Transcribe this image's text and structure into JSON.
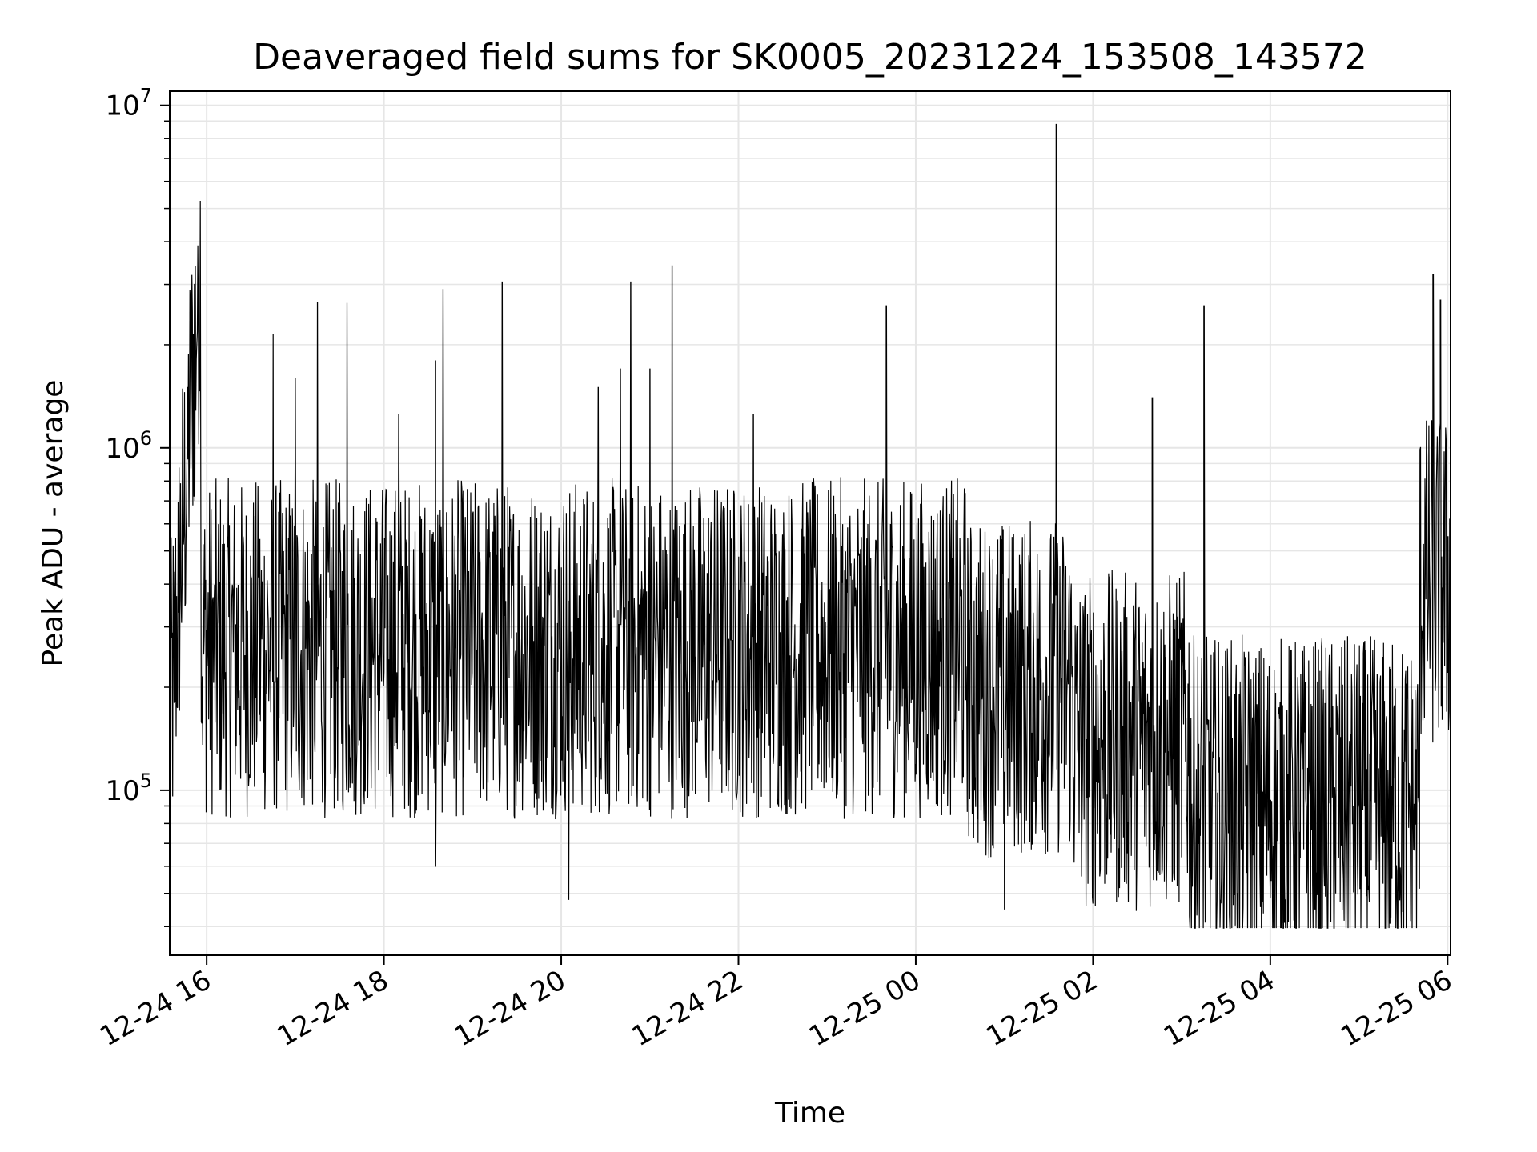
{
  "chart_data": {
    "type": "line",
    "title": "Deaveraged field sums for SK0005_20231224_153508_143572",
    "xlabel": "Time",
    "ylabel": "Peak ADU - average",
    "x_type": "datetime",
    "xlim": [
      "2023-12-24 15:35",
      "2023-12-25 06:02"
    ],
    "x_ticks": [
      {
        "time": "2023-12-24 16:00",
        "label": "12-24 16"
      },
      {
        "time": "2023-12-24 18:00",
        "label": "12-24 18"
      },
      {
        "time": "2023-12-24 20:00",
        "label": "12-24 20"
      },
      {
        "time": "2023-12-24 22:00",
        "label": "12-24 22"
      },
      {
        "time": "2023-12-25 00:00",
        "label": "12-25 00"
      },
      {
        "time": "2023-12-25 02:00",
        "label": "12-25 02"
      },
      {
        "time": "2023-12-25 04:00",
        "label": "12-25 04"
      },
      {
        "time": "2023-12-25 06:00",
        "label": "12-25 06"
      }
    ],
    "y_scale": "log",
    "ylim": [
      33000,
      11000000
    ],
    "y_ticks": [
      {
        "value": 100000,
        "base": "10",
        "exp": "5"
      },
      {
        "value": 1000000,
        "base": "10",
        "exp": "6"
      },
      {
        "value": 10000000,
        "base": "10",
        "exp": "7"
      }
    ],
    "grid": true,
    "line_color": "#000000",
    "grid_color": "#e6e6e6",
    "series": [
      {
        "values_description_points": [
          [
            "2023-12-24 15:35",
            100000
          ],
          [
            "2023-12-24 15:38",
            180000
          ],
          [
            "2023-12-24 15:41",
            330000
          ],
          [
            "2023-12-24 15:44",
            600000
          ],
          [
            "2023-12-24 15:47",
            1500000
          ],
          [
            "2023-12-24 15:50",
            3200000
          ],
          [
            "2023-12-24 15:52",
            700000
          ],
          [
            "2023-12-24 15:54",
            3900000
          ],
          [
            "2023-12-24 15:56",
            800000
          ],
          [
            "2023-12-24 15:58",
            250000
          ],
          [
            "2023-12-24 16:05",
            350000
          ],
          [
            "2023-12-24 16:35",
            420000
          ],
          [
            "2023-12-24 16:45",
            2150000
          ],
          [
            "2023-12-24 17:00",
            1600000
          ],
          [
            "2023-12-24 17:15",
            2650000
          ],
          [
            "2023-12-24 17:35",
            2650000
          ],
          [
            "2023-12-24 18:10",
            1250000
          ],
          [
            "2023-12-24 18:35",
            1800000
          ],
          [
            "2023-12-24 18:35",
            60000
          ],
          [
            "2023-12-24 18:40",
            2900000
          ],
          [
            "2023-12-24 19:20",
            3050000
          ],
          [
            "2023-12-24 20:05",
            48000
          ],
          [
            "2023-12-24 20:25",
            1500000
          ],
          [
            "2023-12-24 20:40",
            1700000
          ],
          [
            "2023-12-24 20:47",
            3050000
          ],
          [
            "2023-12-24 21:00",
            1700000
          ],
          [
            "2023-12-24 21:15",
            3400000
          ],
          [
            "2023-12-24 22:10",
            1250000
          ],
          [
            "2023-12-24 23:40",
            2600000
          ],
          [
            "2023-12-25 01:00",
            45000
          ],
          [
            "2023-12-25 01:35",
            3800000
          ],
          [
            "2023-12-25 01:35",
            8800000
          ],
          [
            "2023-12-25 02:40",
            1400000
          ],
          [
            "2023-12-25 03:15",
            2600000
          ],
          [
            "2023-12-25 03:20",
            55000
          ],
          [
            "2023-12-25 04:30",
            45000
          ],
          [
            "2023-12-25 05:40",
            95000
          ],
          [
            "2023-12-25 05:50",
            3200000
          ],
          [
            "2023-12-25 05:55",
            2700000
          ],
          [
            "2023-12-25 06:00",
            550000
          ]
        ]
      }
    ]
  }
}
